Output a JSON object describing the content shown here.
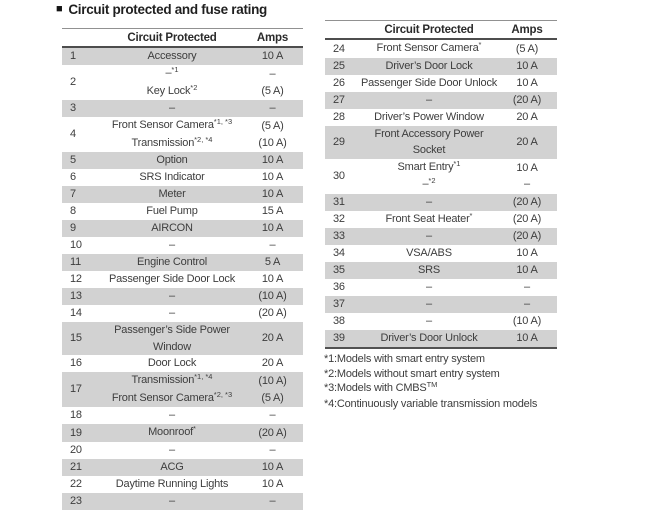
{
  "title": "Circuit protected and fuse rating",
  "colors": {
    "row_shade": "#d2d2d2",
    "text": "#3d3d3d",
    "line_dark": "#4d4d4d",
    "line_light": "#919191"
  },
  "tables": [
    {
      "headers": {
        "circuit": "Circuit Protected",
        "amps": "Amps"
      },
      "rows": [
        {
          "n": "1",
          "circuit": [
            {
              "t": "Accessory",
              "s": ""
            }
          ],
          "amps": [
            "10 A"
          ]
        },
        {
          "n": "2",
          "circuit": [
            {
              "t": "–",
              "s": "*1"
            },
            {
              "t": "Key Lock",
              "s": "*2"
            }
          ],
          "amps": [
            "–",
            "(5 A)"
          ]
        },
        {
          "n": "3",
          "circuit": [
            {
              "t": "–",
              "s": ""
            }
          ],
          "amps": [
            "–"
          ]
        },
        {
          "n": "4",
          "circuit": [
            {
              "t": "Front Sensor Camera",
              "s": "*1, *3"
            },
            {
              "t": "Transmission",
              "s": "*2, *4"
            }
          ],
          "amps": [
            "(5 A)",
            "(10 A)"
          ]
        },
        {
          "n": "5",
          "circuit": [
            {
              "t": "Option",
              "s": ""
            }
          ],
          "amps": [
            "10 A"
          ]
        },
        {
          "n": "6",
          "circuit": [
            {
              "t": "SRS Indicator",
              "s": ""
            }
          ],
          "amps": [
            "10 A"
          ]
        },
        {
          "n": "7",
          "circuit": [
            {
              "t": "Meter",
              "s": ""
            }
          ],
          "amps": [
            "10 A"
          ]
        },
        {
          "n": "8",
          "circuit": [
            {
              "t": "Fuel Pump",
              "s": ""
            }
          ],
          "amps": [
            "15 A"
          ]
        },
        {
          "n": "9",
          "circuit": [
            {
              "t": "AIRCON",
              "s": ""
            }
          ],
          "amps": [
            "10 A"
          ]
        },
        {
          "n": "10",
          "circuit": [
            {
              "t": "–",
              "s": ""
            }
          ],
          "amps": [
            "–"
          ]
        },
        {
          "n": "11",
          "circuit": [
            {
              "t": "Engine Control",
              "s": ""
            }
          ],
          "amps": [
            "5 A"
          ]
        },
        {
          "n": "12",
          "circuit": [
            {
              "t": "Passenger Side Door Lock",
              "s": ""
            }
          ],
          "amps": [
            "10 A"
          ]
        },
        {
          "n": "13",
          "circuit": [
            {
              "t": "–",
              "s": ""
            }
          ],
          "amps": [
            "(10 A)"
          ]
        },
        {
          "n": "14",
          "circuit": [
            {
              "t": "–",
              "s": ""
            }
          ],
          "amps": [
            "(20 A)"
          ]
        },
        {
          "n": "15",
          "circuit": [
            {
              "t": "Passenger’s Side Power",
              "s": ""
            },
            {
              "t": "Window",
              "s": ""
            }
          ],
          "amps": [
            "20 A"
          ]
        },
        {
          "n": "16",
          "circuit": [
            {
              "t": "Door Lock",
              "s": ""
            }
          ],
          "amps": [
            "20 A"
          ]
        },
        {
          "n": "17",
          "circuit": [
            {
              "t": "Transmission",
              "s": "*1, *4"
            },
            {
              "t": "Front Sensor Camera",
              "s": "*2, *3"
            }
          ],
          "amps": [
            "(10 A)",
            "(5 A)"
          ]
        },
        {
          "n": "18",
          "circuit": [
            {
              "t": "–",
              "s": ""
            }
          ],
          "amps": [
            "–"
          ]
        },
        {
          "n": "19",
          "circuit": [
            {
              "t": "Moonroof",
              "s": "*"
            }
          ],
          "amps": [
            "(20 A)"
          ]
        },
        {
          "n": "20",
          "circuit": [
            {
              "t": "–",
              "s": ""
            }
          ],
          "amps": [
            "–"
          ]
        },
        {
          "n": "21",
          "circuit": [
            {
              "t": "ACG",
              "s": ""
            }
          ],
          "amps": [
            "10 A"
          ]
        },
        {
          "n": "22",
          "circuit": [
            {
              "t": "Daytime Running Lights",
              "s": ""
            }
          ],
          "amps": [
            "10 A"
          ]
        },
        {
          "n": "23",
          "circuit": [
            {
              "t": "–",
              "s": ""
            }
          ],
          "amps": [
            "–"
          ]
        }
      ]
    },
    {
      "headers": {
        "circuit": "Circuit Protected",
        "amps": "Amps"
      },
      "rows": [
        {
          "n": "24",
          "circuit": [
            {
              "t": "Front Sensor Camera",
              "s": "*"
            }
          ],
          "amps": [
            "(5 A)"
          ]
        },
        {
          "n": "25",
          "circuit": [
            {
              "t": "Driver’s Door Lock",
              "s": ""
            }
          ],
          "amps": [
            "10 A"
          ]
        },
        {
          "n": "26",
          "circuit": [
            {
              "t": "Passenger Side Door Unlock",
              "s": ""
            }
          ],
          "amps": [
            "10 A"
          ]
        },
        {
          "n": "27",
          "circuit": [
            {
              "t": "–",
              "s": ""
            }
          ],
          "amps": [
            "(20 A)"
          ]
        },
        {
          "n": "28",
          "circuit": [
            {
              "t": "Driver’s Power Window",
              "s": ""
            }
          ],
          "amps": [
            "20 A"
          ]
        },
        {
          "n": "29",
          "circuit": [
            {
              "t": "Front Accessory Power",
              "s": ""
            },
            {
              "t": "Socket",
              "s": ""
            }
          ],
          "amps": [
            "20 A"
          ]
        },
        {
          "n": "30",
          "circuit": [
            {
              "t": "Smart Entry",
              "s": "*1"
            },
            {
              "t": "–",
              "s": "*2"
            }
          ],
          "amps": [
            "10 A",
            "–"
          ]
        },
        {
          "n": "31",
          "circuit": [
            {
              "t": "–",
              "s": ""
            }
          ],
          "amps": [
            "(20 A)"
          ]
        },
        {
          "n": "32",
          "circuit": [
            {
              "t": "Front Seat Heater",
              "s": "*"
            }
          ],
          "amps": [
            "(20 A)"
          ]
        },
        {
          "n": "33",
          "circuit": [
            {
              "t": "–",
              "s": ""
            }
          ],
          "amps": [
            "(20 A)"
          ]
        },
        {
          "n": "34",
          "circuit": [
            {
              "t": "VSA/ABS",
              "s": ""
            }
          ],
          "amps": [
            "10 A"
          ]
        },
        {
          "n": "35",
          "circuit": [
            {
              "t": "SRS",
              "s": ""
            }
          ],
          "amps": [
            "10 A"
          ]
        },
        {
          "n": "36",
          "circuit": [
            {
              "t": "–",
              "s": ""
            }
          ],
          "amps": [
            "–"
          ]
        },
        {
          "n": "37",
          "circuit": [
            {
              "t": "–",
              "s": ""
            }
          ],
          "amps": [
            "–"
          ]
        },
        {
          "n": "38",
          "circuit": [
            {
              "t": "–",
              "s": ""
            }
          ],
          "amps": [
            "(10 A)"
          ]
        },
        {
          "n": "39",
          "circuit": [
            {
              "t": "Driver’s Door Unlock",
              "s": ""
            }
          ],
          "amps": [
            "10 A"
          ]
        }
      ]
    }
  ],
  "footnotes": [
    {
      "label": "*1:",
      "text": "Models with smart entry system",
      "sup": ""
    },
    {
      "label": "*2:",
      "text": "Models without smart entry system",
      "sup": ""
    },
    {
      "label": "*3:",
      "text": "Models with CMBS",
      "sup": "TM"
    },
    {
      "label": "*4:",
      "text": "Continuously variable transmission models",
      "sup": ""
    }
  ]
}
